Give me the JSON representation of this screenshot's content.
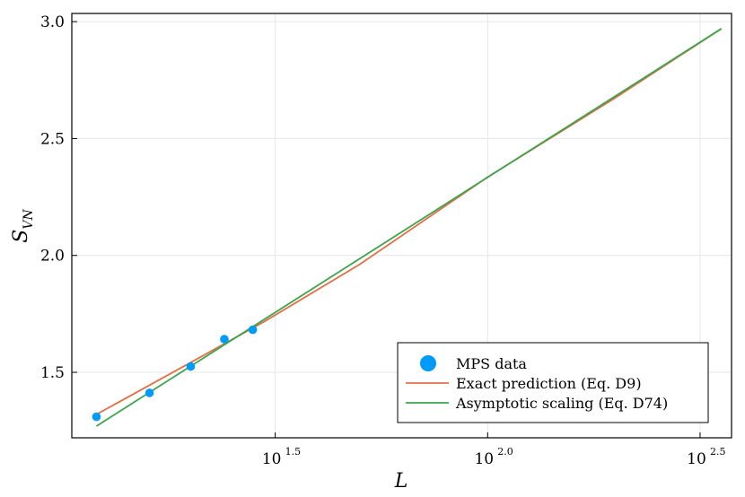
{
  "chart_data": {
    "type": "line",
    "x_scale": "log10",
    "xlabel": "L",
    "ylabel_main": "S",
    "ylabel_sub": "VN",
    "xlim": [
      10.5,
      375
    ],
    "ylim": [
      1.22,
      3.035
    ],
    "x_ticks": [
      {
        "value": 31.6228,
        "base": "10",
        "exp": "1.5"
      },
      {
        "value": 100,
        "base": "10",
        "exp": "2.0"
      },
      {
        "value": 316.228,
        "base": "10",
        "exp": "2.5"
      }
    ],
    "y_ticks": [
      {
        "value": 1.5,
        "label": "1.5"
      },
      {
        "value": 2.0,
        "label": "2.0"
      },
      {
        "value": 2.5,
        "label": "2.5"
      },
      {
        "value": 3.0,
        "label": "3.0"
      }
    ],
    "grid": true,
    "legend_position": "bottom-right",
    "series": [
      {
        "name": "MPS data",
        "kind": "scatter",
        "color": "#009af9",
        "x": [
          12,
          16,
          20,
          24,
          28
        ],
        "y": [
          1.31,
          1.412,
          1.525,
          1.642,
          1.682
        ]
      },
      {
        "name": "Exact prediction (Eq. D9)",
        "kind": "line",
        "color": "#e26f46",
        "x": [
          12,
          20,
          30,
          50,
          100,
          200,
          355
        ],
        "y": [
          1.32,
          1.542,
          1.72,
          1.962,
          2.335,
          2.675,
          2.97
        ]
      },
      {
        "name": "Asymptotic scaling (Eq. D74)",
        "kind": "line",
        "color": "#3da44d",
        "x": [
          12,
          355
        ],
        "y": [
          1.27,
          2.97
        ]
      }
    ]
  }
}
